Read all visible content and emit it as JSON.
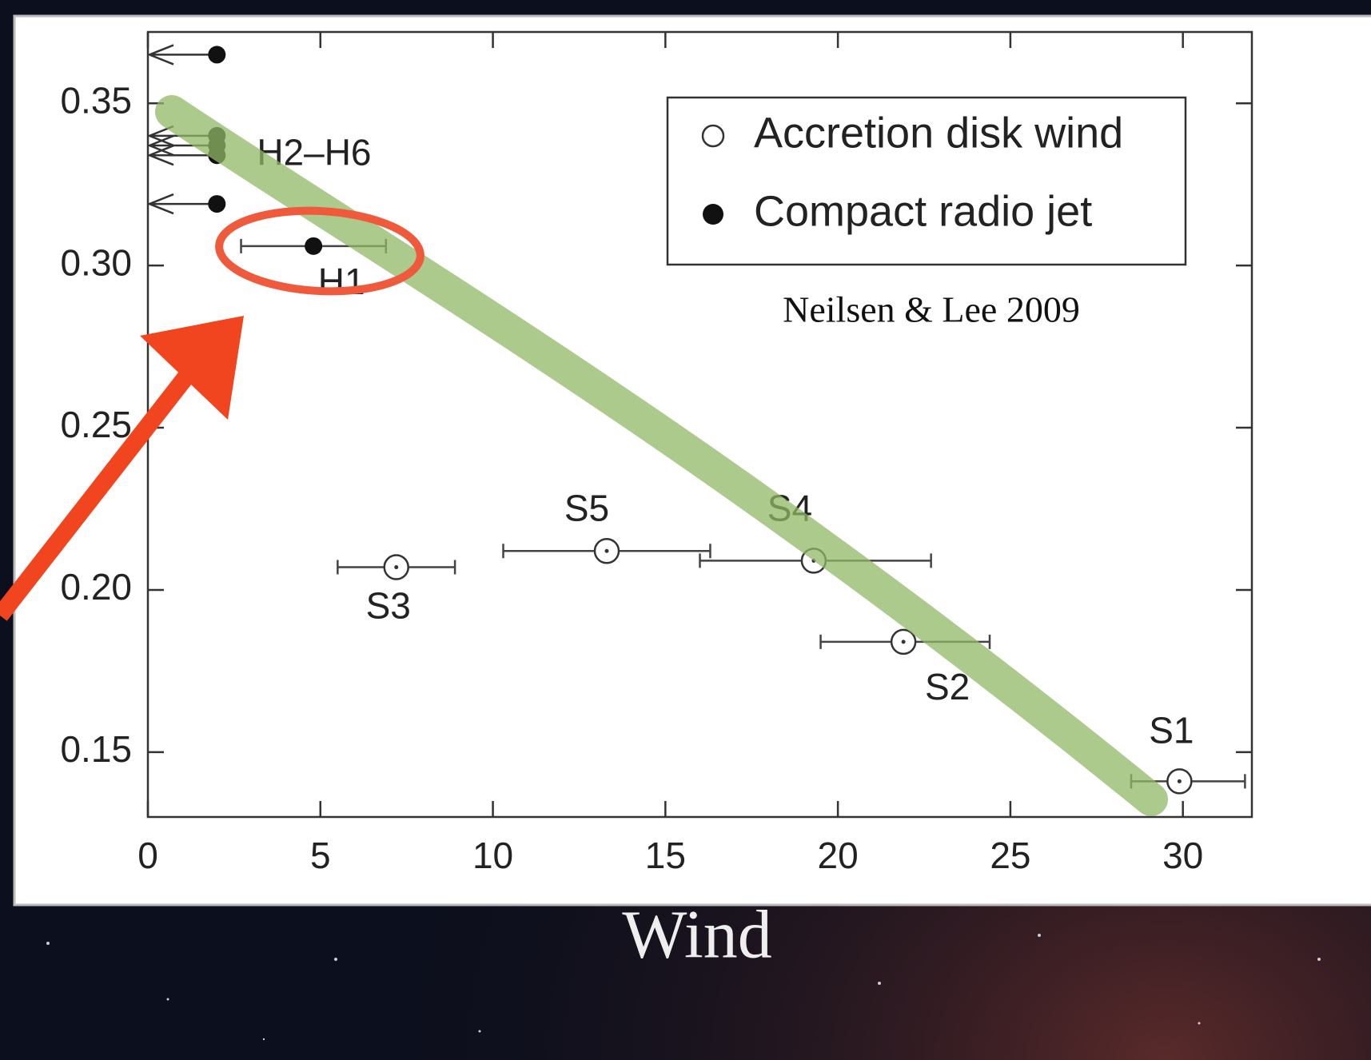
{
  "caption": "Wind",
  "chart_data": {
    "type": "scatter",
    "note": "Neilsen & Lee 2009",
    "xlim": [
      0,
      32
    ],
    "ylim": [
      0.13,
      0.372
    ],
    "xticks": [
      0,
      5,
      10,
      15,
      20,
      25,
      30
    ],
    "yticks": [
      0.15,
      {
        "value": 0.2,
        "label": "0.20"
      },
      0.25,
      {
        "value": 0.3,
        "label": "0.30"
      },
      0.35
    ],
    "legend": "upper right",
    "series": [
      {
        "name": "Accretion disk wind",
        "marker": "open",
        "color": "#333333",
        "x": [
          29.9,
          21.9,
          7.2,
          19.3,
          13.3
        ],
        "values": [
          0.141,
          0.184,
          0.207,
          0.209,
          0.212
        ],
        "xerr_minus": [
          1.4,
          2.4,
          1.7,
          3.3,
          3.0
        ],
        "xerr_plus": [
          1.9,
          2.5,
          1.7,
          3.4,
          3.0
        ],
        "labels": [
          "S1",
          "S2",
          "S3",
          "S4",
          "S5"
        ]
      },
      {
        "name": "Compact radio jet",
        "marker": "filled",
        "color": "#111111",
        "x": [
          4.8,
          2,
          2,
          2,
          2,
          2
        ],
        "values": [
          0.306,
          0.365,
          0.34,
          0.337,
          0.334,
          0.319
        ],
        "xerr_minus": [
          2.1,
          null,
          null,
          null,
          null,
          null
        ],
        "xerr_plus": [
          2.1,
          null,
          null,
          null,
          null,
          null
        ],
        "upper_limit": [
          false,
          true,
          true,
          true,
          true,
          true
        ],
        "labels": [
          "H1",
          null,
          null,
          null,
          "H2–H6",
          null
        ]
      }
    ]
  }
}
